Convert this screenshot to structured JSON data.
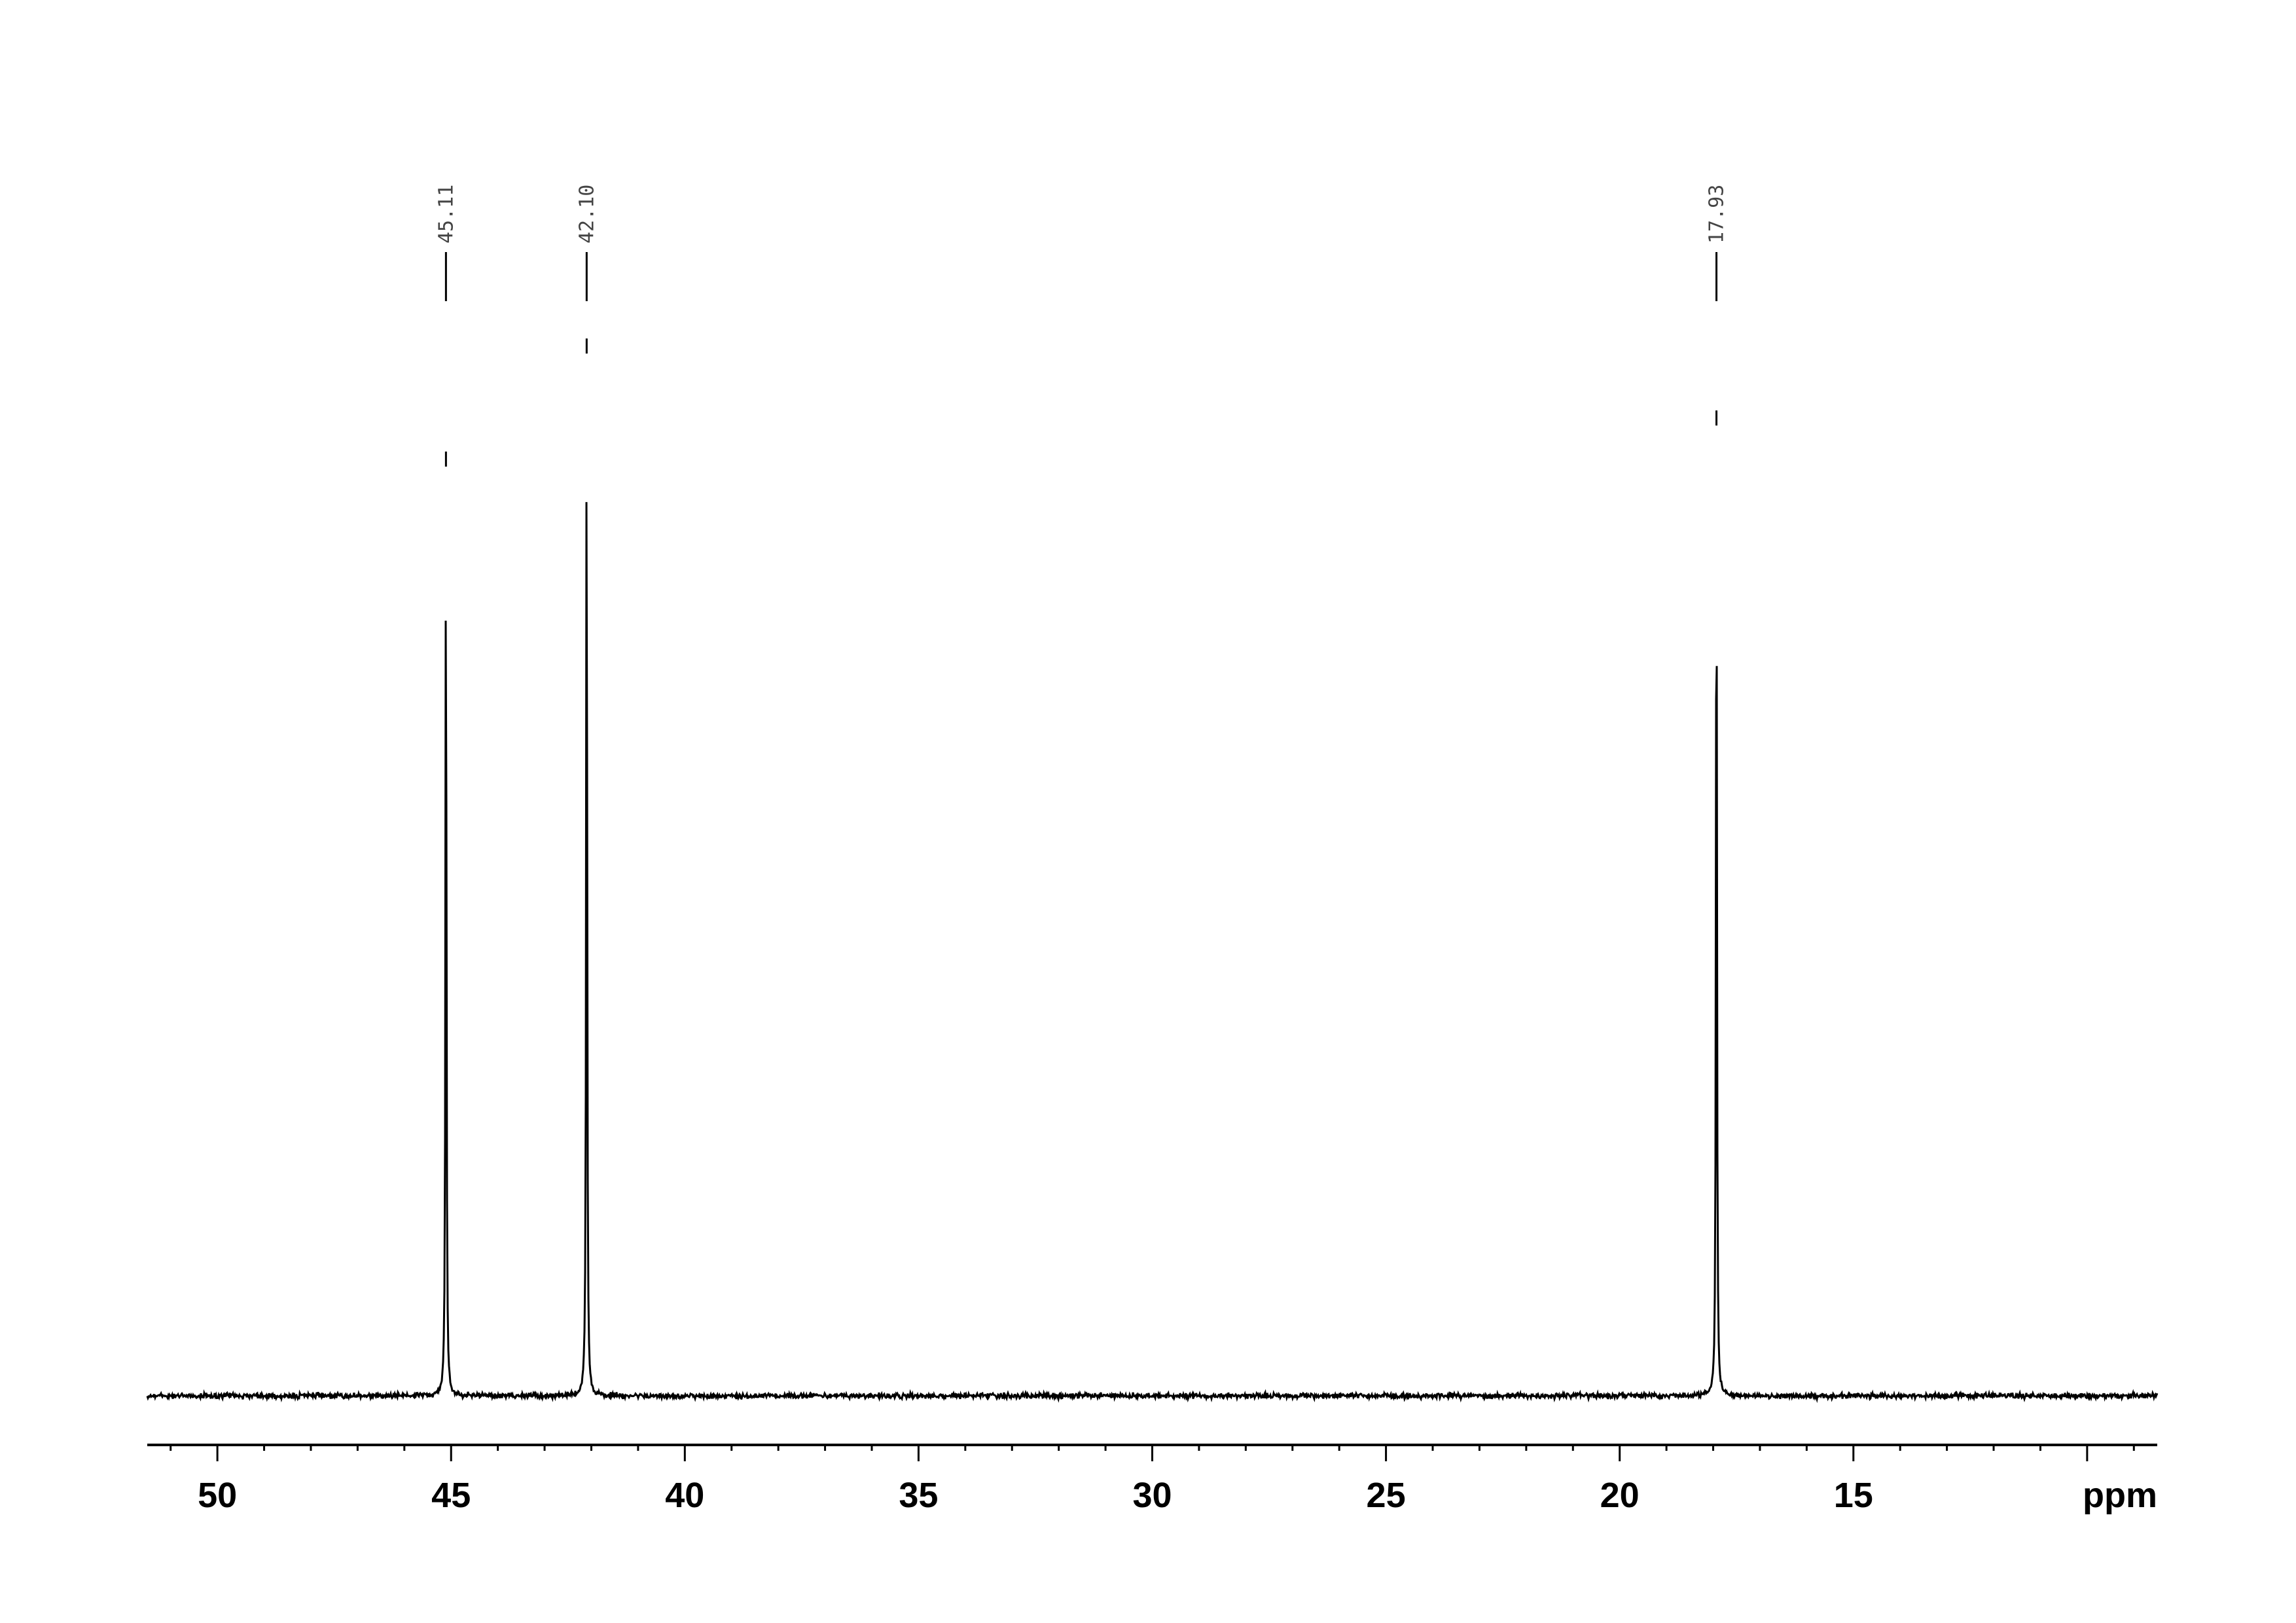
{
  "chart_data": {
    "type": "line",
    "title": "",
    "xlabel": "ppm",
    "ylabel": "",
    "xlim": [
      51.5,
      8.5
    ],
    "x_reversed": true,
    "grid": false,
    "legend": "none",
    "x_ticks_major": [
      50,
      45,
      40,
      35,
      30,
      25,
      20,
      15
    ],
    "x_tick_labels": [
      "50",
      "45",
      "40",
      "35",
      "30",
      "25",
      "20",
      "15"
    ],
    "x_minor_tick_step": 1,
    "peaks": [
      {
        "ppm": 45.11,
        "label": "45.11",
        "relative_intensity": 0.89
      },
      {
        "ppm": 42.1,
        "label": "42.10",
        "relative_intensity": 1.0
      },
      {
        "ppm": 17.93,
        "label": "17.93",
        "relative_intensity": 0.93
      }
    ],
    "line_color": "#000000"
  }
}
